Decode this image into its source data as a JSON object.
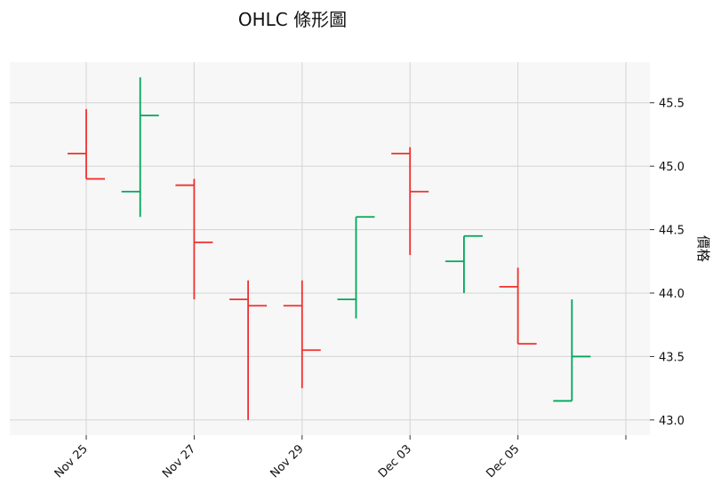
{
  "chart_data": {
    "type": "ohlc",
    "title": "OHLC 條形圖",
    "xlabel": "",
    "ylabel": "價格",
    "ylim": [
      42.88,
      45.82
    ],
    "yticks": [
      "43.0",
      "43.5",
      "44.0",
      "44.5",
      "45.0",
      "45.5"
    ],
    "ytick_values": [
      43.0,
      43.5,
      44.0,
      44.5,
      45.0,
      45.5
    ],
    "xticks": [
      "Nov 25",
      "Nov 27",
      "Nov 29",
      "Dec 03",
      "Dec 05",
      ""
    ],
    "grid": true,
    "up_color": "#00a65a",
    "down_color": "#f0302e",
    "bars": [
      {
        "date": "2024-11-25",
        "open": 45.1,
        "high": 45.45,
        "low": 44.9,
        "close": 44.9
      },
      {
        "date": "2024-11-26",
        "open": 44.8,
        "high": 45.7,
        "low": 44.6,
        "close": 45.4
      },
      {
        "date": "2024-11-27",
        "open": 44.85,
        "high": 44.9,
        "low": 43.95,
        "close": 44.4
      },
      {
        "date": "2024-11-28",
        "open": 43.95,
        "high": 44.1,
        "low": 43.0,
        "close": 43.9
      },
      {
        "date": "2024-11-29",
        "open": 43.9,
        "high": 44.1,
        "low": 43.25,
        "close": 43.55
      },
      {
        "date": "2024-12-02",
        "open": 43.95,
        "high": 44.6,
        "low": 43.8,
        "close": 44.6
      },
      {
        "date": "2024-12-03",
        "open": 45.1,
        "high": 45.15,
        "low": 44.3,
        "close": 44.8
      },
      {
        "date": "2024-12-04",
        "open": 44.25,
        "high": 44.45,
        "low": 44.0,
        "close": 44.45
      },
      {
        "date": "2024-12-05",
        "open": 44.05,
        "high": 44.2,
        "low": 43.6,
        "close": 43.6
      },
      {
        "date": "2024-12-06",
        "open": 43.15,
        "high": 43.95,
        "low": 43.15,
        "close": 43.5
      }
    ]
  }
}
